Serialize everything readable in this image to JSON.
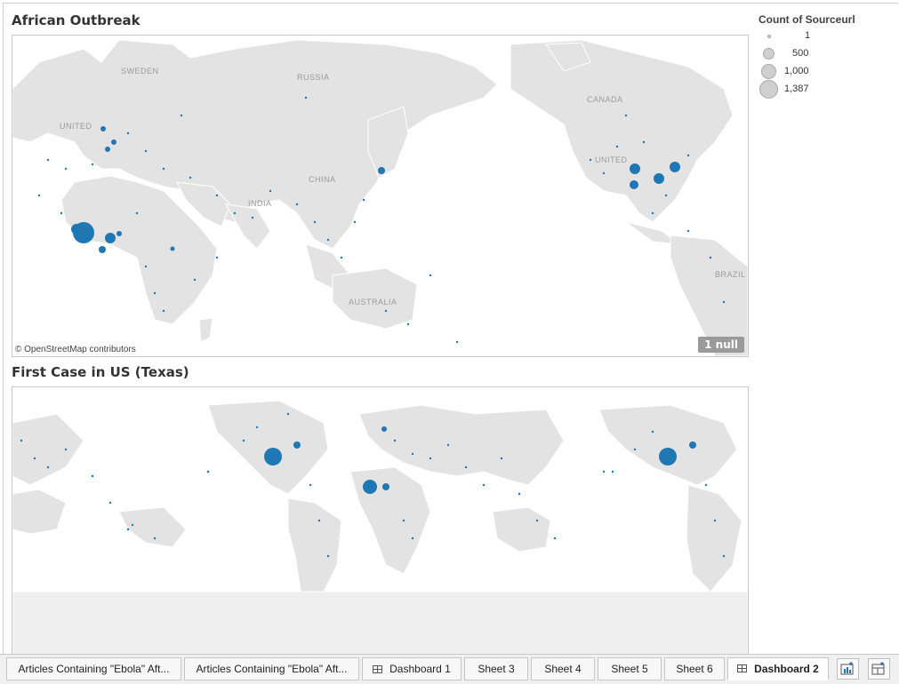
{
  "dashboard": {
    "map1": {
      "title": "African Outbreak",
      "credit": "© OpenStreetMap contributors",
      "null_badge": "1 null",
      "labels": [
        "SWEDEN",
        "RUSSIA",
        "UNITED",
        "CHINA",
        "INDIA",
        "CANADA",
        "UNITED",
        "BRAZIL",
        "AUSTRALIA"
      ]
    },
    "map2": {
      "title": "First Case in US (Texas)"
    },
    "legend": {
      "title": "Count of Sourceurl",
      "items": [
        {
          "label": "1",
          "value": 1
        },
        {
          "label": "500",
          "value": 500
        },
        {
          "label": "1,000",
          "value": 1000
        },
        {
          "label": "1,387",
          "value": 1387
        }
      ]
    }
  },
  "colors": {
    "mark": "#1f77b4",
    "land": "#e3e3e3",
    "border": "#ffffff"
  },
  "tabs": [
    {
      "label": "Articles Containing \"Ebola\" Aft...",
      "icon": ""
    },
    {
      "label": "Articles Containing \"Ebola\" Aft...",
      "icon": ""
    },
    {
      "label": "Dashboard 1",
      "icon": "dashboard-icon"
    },
    {
      "label": "Sheet 3",
      "icon": ""
    },
    {
      "label": "Sheet 4",
      "icon": ""
    },
    {
      "label": "Sheet 5",
      "icon": ""
    },
    {
      "label": "Sheet 6",
      "icon": ""
    },
    {
      "label": "Dashboard 2",
      "icon": "dashboard-icon",
      "active": true
    }
  ],
  "toolbar": {
    "new_worksheet_icon": "new-worksheet-icon",
    "new_dashboard_icon": "new-dashboard-icon"
  }
}
